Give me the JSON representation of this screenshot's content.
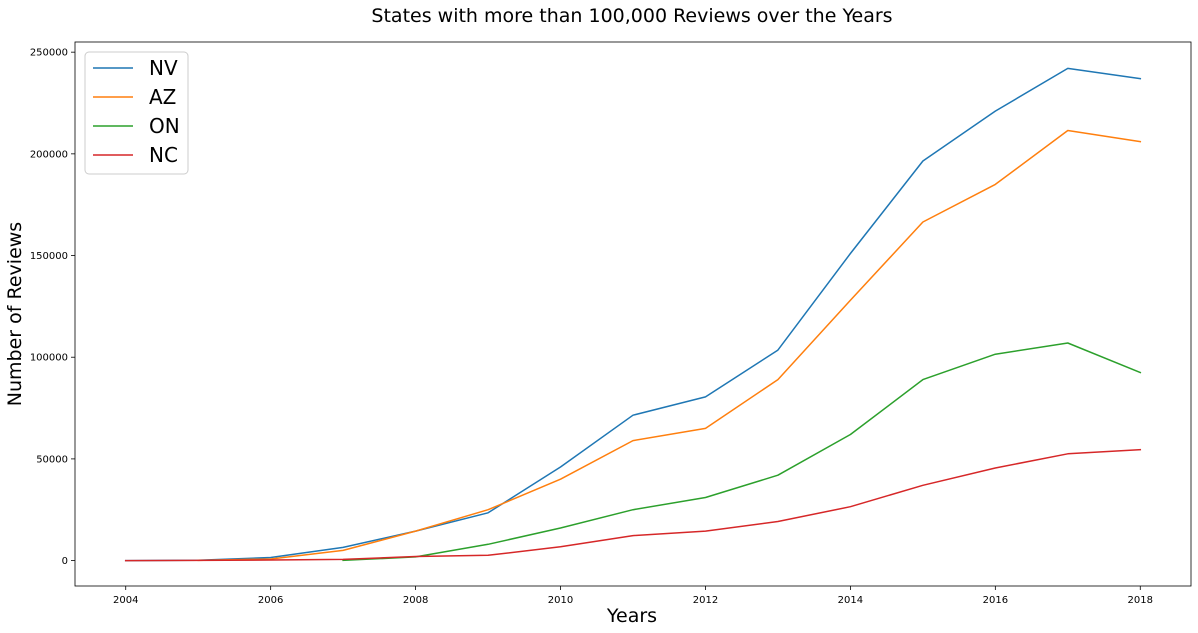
{
  "chart_data": {
    "type": "line",
    "title": "States with more than 100,000 Reviews over the Years",
    "xlabel": "Years",
    "ylabel": "Number of Reviews",
    "xlim": [
      2003.3,
      2018.7
    ],
    "ylim": [
      -12500,
      255000
    ],
    "xticks": [
      2004,
      2006,
      2008,
      2010,
      2012,
      2014,
      2016,
      2018
    ],
    "xtick_labels": [
      "2004",
      "2006",
      "2008",
      "2010",
      "2012",
      "2014",
      "2016",
      "2018"
    ],
    "yticks": [
      0,
      50000,
      100000,
      150000,
      200000,
      250000
    ],
    "ytick_labels": [
      "0",
      "50000",
      "100000",
      "150000",
      "200000",
      "250000"
    ],
    "legend_position": "top-left",
    "grid": false,
    "series": [
      {
        "name": "NV",
        "color": "#1f77b4",
        "x": [
          2004,
          2005,
          2006,
          2007,
          2008,
          2009,
          2010,
          2011,
          2012,
          2013,
          2014,
          2015,
          2016,
          2017,
          2018
        ],
        "values": [
          0,
          200,
          1500,
          6500,
          14500,
          23500,
          46000,
          71500,
          80500,
          103500,
          151000,
          196500,
          221000,
          242000,
          237000
        ]
      },
      {
        "name": "AZ",
        "color": "#ff7f0e",
        "x": [
          2005,
          2006,
          2007,
          2008,
          2009,
          2010,
          2011,
          2012,
          2013,
          2014,
          2015,
          2016,
          2017,
          2018
        ],
        "values": [
          100,
          800,
          5000,
          14500,
          25000,
          40000,
          59000,
          65000,
          89000,
          128000,
          166500,
          185000,
          211500,
          206000
        ]
      },
      {
        "name": "ON",
        "color": "#2ca02c",
        "x": [
          2007,
          2008,
          2009,
          2010,
          2011,
          2012,
          2013,
          2014,
          2015,
          2016,
          2017,
          2018
        ],
        "values": [
          100,
          1800,
          8000,
          16000,
          25000,
          31000,
          42000,
          62000,
          89000,
          101500,
          107000,
          92500
        ]
      },
      {
        "name": "NC",
        "color": "#d62728",
        "x": [
          2004,
          2005,
          2006,
          2007,
          2008,
          2009,
          2010,
          2011,
          2012,
          2013,
          2014,
          2015,
          2016,
          2017,
          2018
        ],
        "values": [
          0,
          100,
          300,
          600,
          2000,
          2600,
          6800,
          12300,
          14500,
          19200,
          26500,
          37000,
          45500,
          52500,
          54500
        ]
      }
    ]
  }
}
